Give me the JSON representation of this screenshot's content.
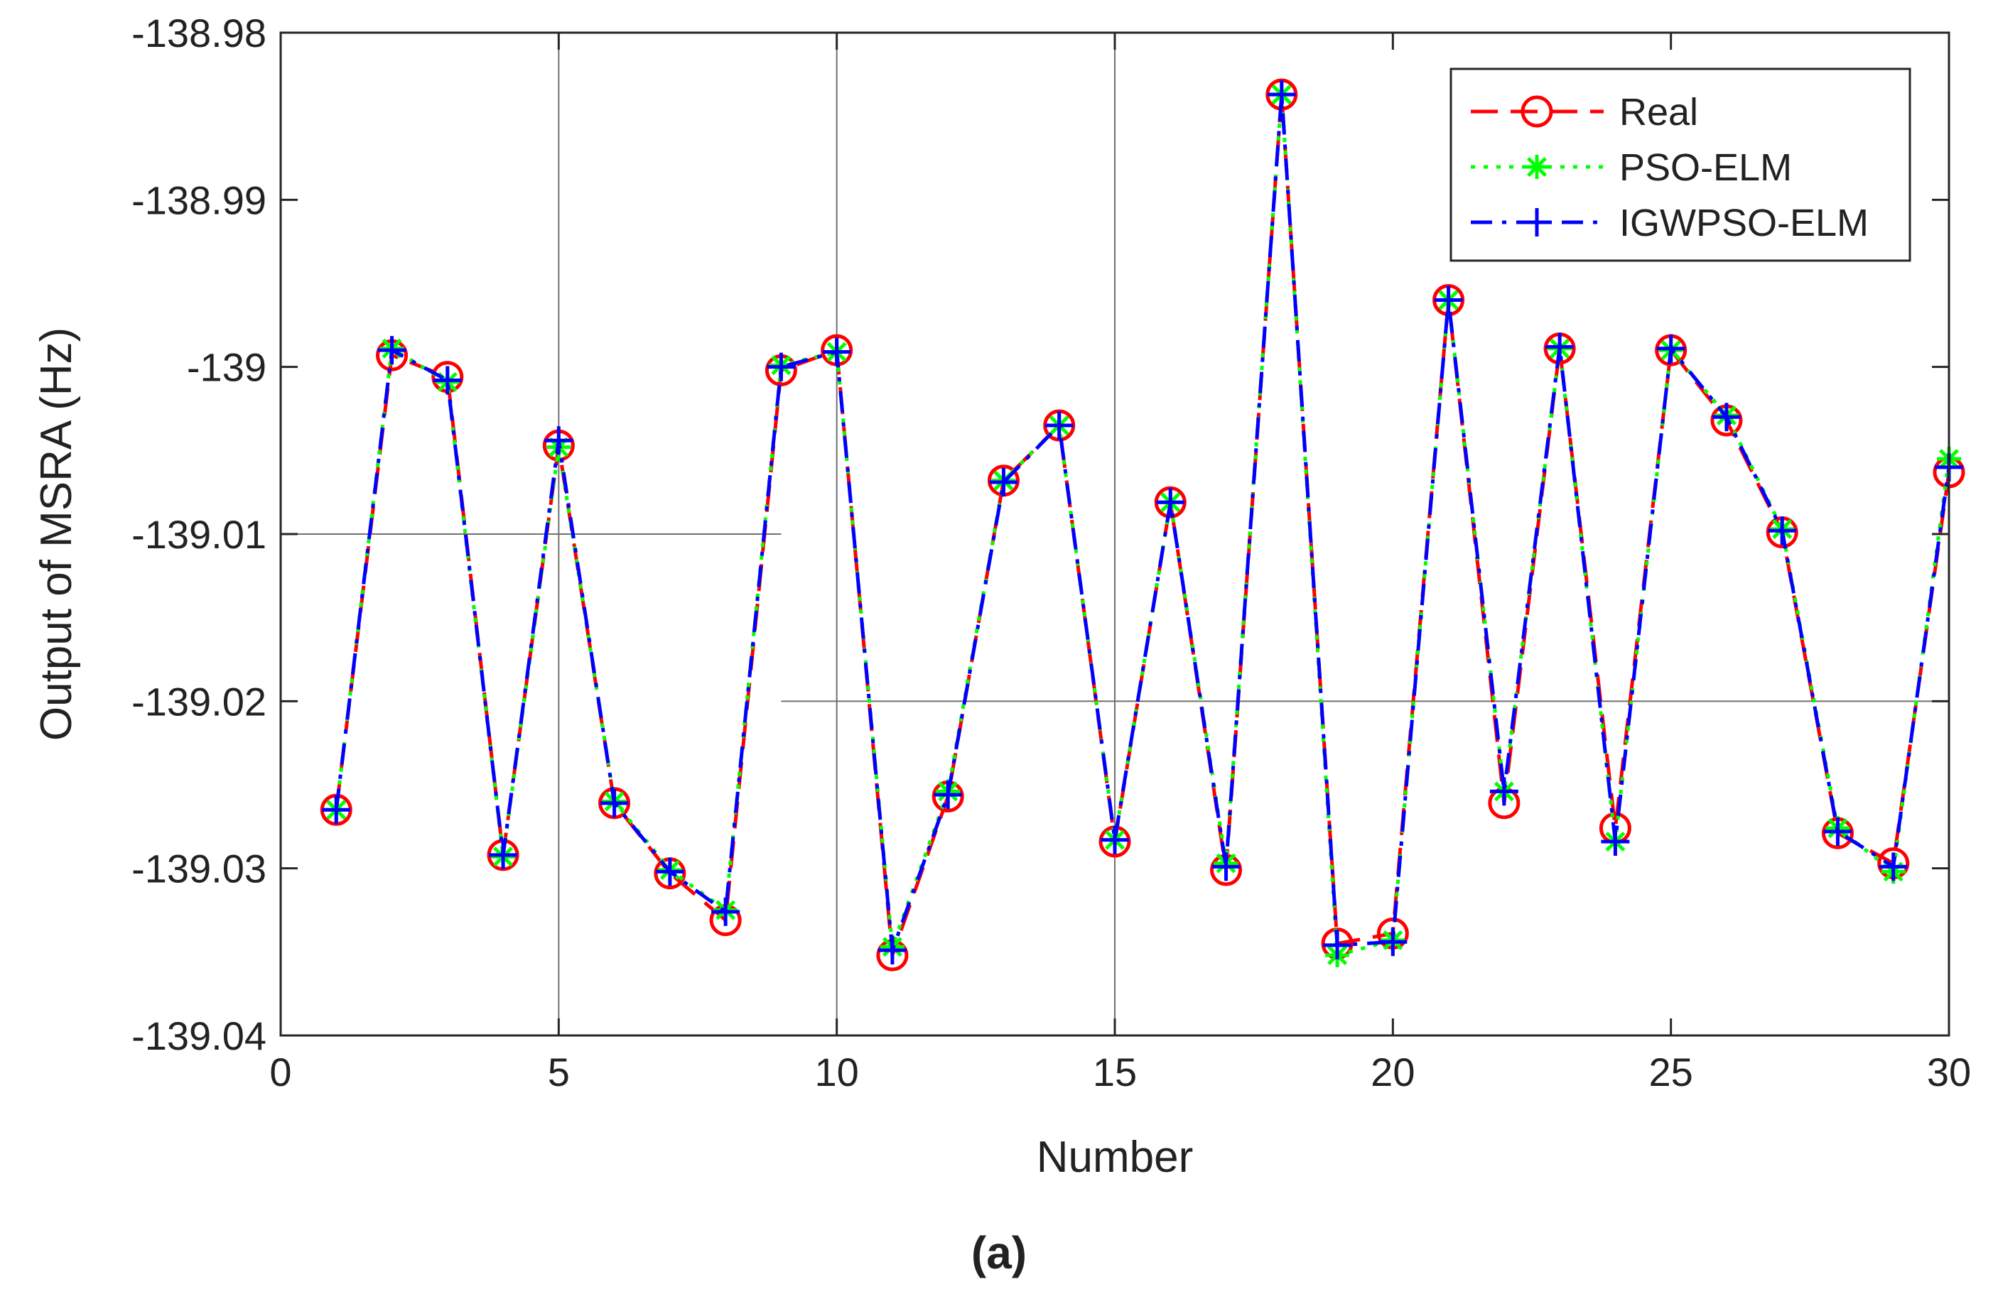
{
  "chart_data": {
    "type": "line",
    "title": "",
    "xlabel": "Number",
    "ylabel": "Output of MSRA (Hz)",
    "caption": "(a)",
    "xlim": [
      0,
      30
    ],
    "ylim": [
      -139.04,
      -138.98
    ],
    "xticks": [
      0,
      5,
      10,
      15,
      20,
      25,
      30
    ],
    "xtick_labels": [
      "0",
      "5",
      "10",
      "15",
      "20",
      "25",
      "30"
    ],
    "yticks": [
      -138.98,
      -138.99,
      -139,
      -139.01,
      -139.02,
      -139.03,
      -139.04
    ],
    "ytick_labels": [
      "-138.98",
      "-138.99",
      "-139",
      "-139.01",
      "-139.02",
      "-139.03",
      "-139.04"
    ],
    "legend_position": "top-right",
    "grid_fragments": [
      {
        "orient": "v",
        "at": 5,
        "from": -139.04,
        "to": -138.98
      },
      {
        "orient": "v",
        "at": 10,
        "from": -139.04,
        "to": -138.98
      },
      {
        "orient": "v",
        "at": 15,
        "from": -139.04,
        "to": -138.98
      },
      {
        "orient": "h",
        "at": -139.01,
        "from": 0,
        "to": 9
      },
      {
        "orient": "h",
        "at": -139.02,
        "from": 9,
        "to": 30
      }
    ],
    "x": [
      1,
      2,
      3,
      4,
      5,
      6,
      7,
      8,
      9,
      10,
      11,
      12,
      13,
      14,
      15,
      16,
      17,
      18,
      19,
      20,
      21,
      22,
      23,
      24,
      25,
      26,
      27,
      28,
      29,
      30
    ],
    "series": [
      {
        "name": "Real",
        "color": "#ff0000",
        "line_style": "dashed",
        "marker": "circle",
        "values": [
          -139.0265,
          -138.9993,
          -139.0006,
          -139.0292,
          -139.0047,
          -139.0261,
          -139.0303,
          -139.0331,
          -139.0002,
          -138.999,
          -139.0352,
          -139.0257,
          -139.0068,
          -139.0035,
          -139.0284,
          -139.0081,
          -139.0301,
          -138.9837,
          -139.0345,
          -139.0339,
          -138.996,
          -139.0261,
          -138.9989,
          -139.0276,
          -138.999,
          -139.0032,
          -139.0099,
          -139.0279,
          -139.0297,
          -139.0063
        ]
      },
      {
        "name": "PSO-ELM",
        "color": "#00ff00",
        "line_style": "dotted",
        "marker": "asterisk",
        "values": [
          -139.0265,
          -138.9989,
          -139.0009,
          -139.0293,
          -139.0048,
          -139.026,
          -139.0301,
          -139.0325,
          -138.9999,
          -138.9991,
          -139.0347,
          -139.0254,
          -139.0068,
          -139.0035,
          -139.0283,
          -139.0081,
          -139.0297,
          -138.9837,
          -139.0352,
          -139.0343,
          -138.996,
          -139.0254,
          -138.9989,
          -139.0284,
          -138.999,
          -139.0029,
          -139.0097,
          -139.0276,
          -139.0302,
          -139.0055
        ]
      },
      {
        "name": "IGWPSO-ELM",
        "color": "#0000ff",
        "line_style": "dash-dot",
        "marker": "plus",
        "values": [
          -139.0265,
          -138.999,
          -139.0008,
          -139.0292,
          -139.0044,
          -139.0261,
          -139.0302,
          -139.0326,
          -139.0,
          -138.9991,
          -139.0349,
          -139.0256,
          -139.0069,
          -139.0035,
          -139.0283,
          -139.0081,
          -139.0299,
          -138.9837,
          -139.0346,
          -139.0344,
          -138.996,
          -139.0254,
          -138.9988,
          -139.0284,
          -138.9989,
          -139.003,
          -139.0098,
          -139.0278,
          -139.0299,
          -139.006
        ]
      }
    ]
  }
}
